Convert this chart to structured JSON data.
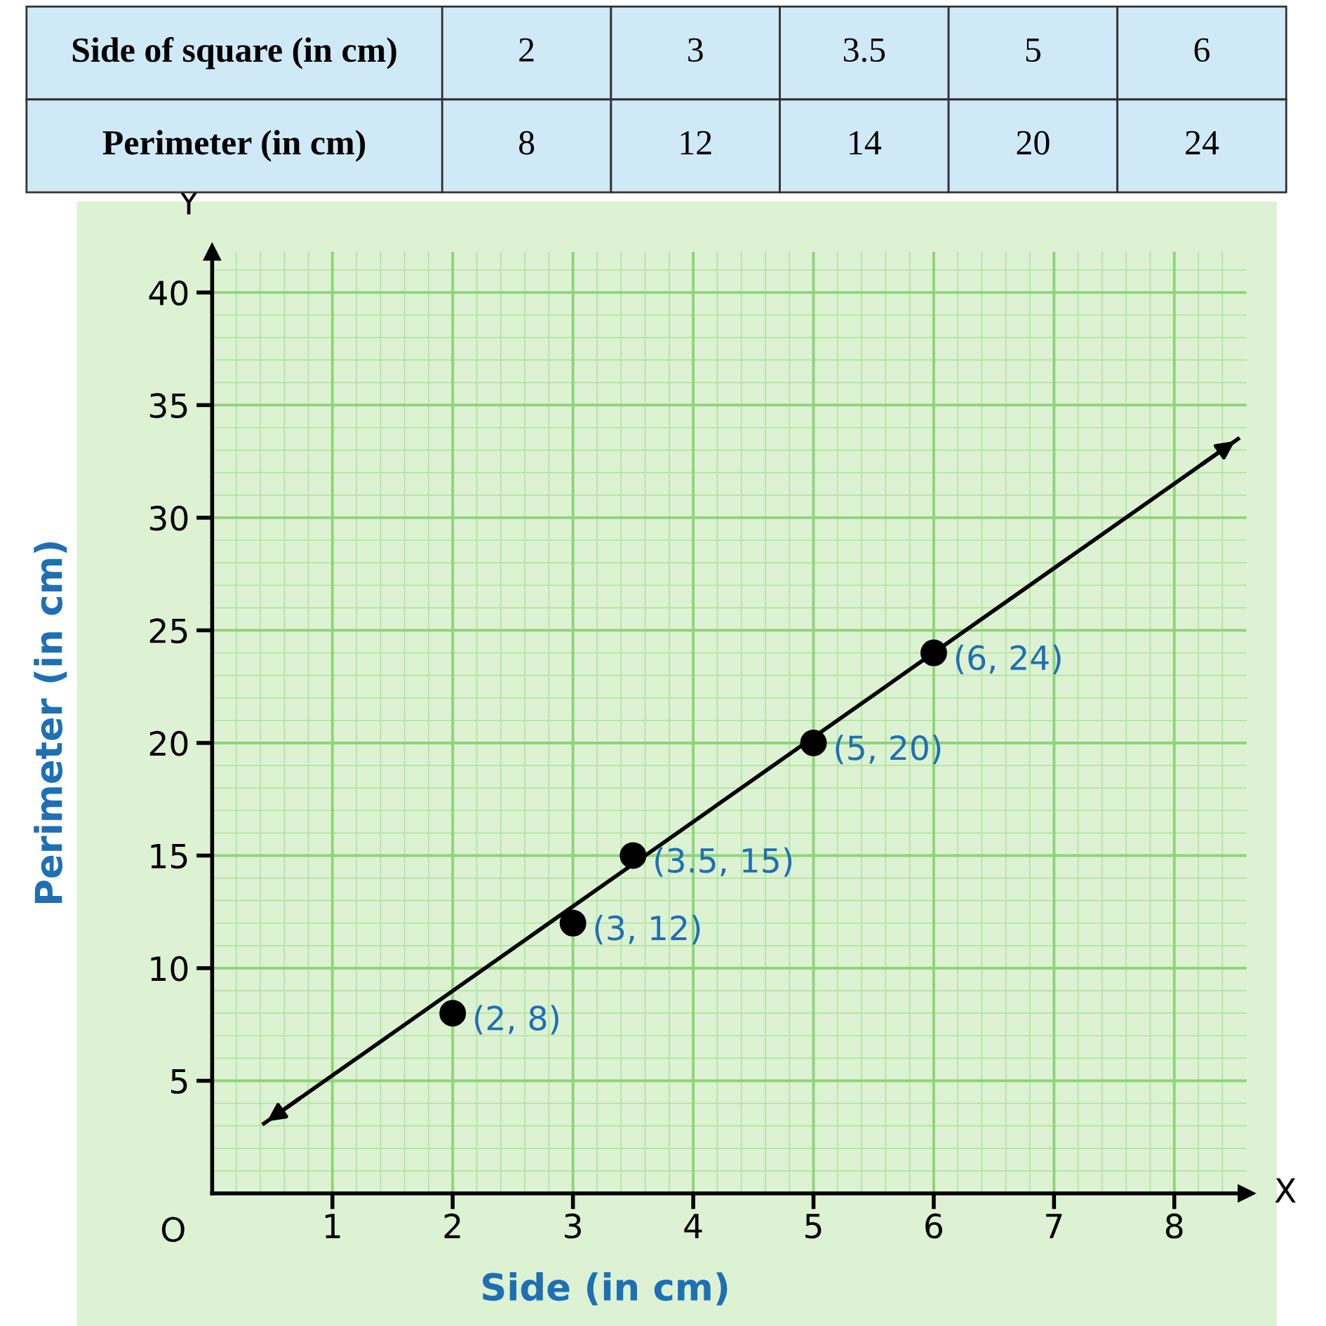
{
  "chart_data": {
    "type": "scatter",
    "xlabel": "Side (in cm)",
    "ylabel": "Perimeter (in cm)",
    "series": [
      {
        "color": "#000000",
        "x": [
          2,
          3,
          3.5,
          5,
          6
        ],
        "values": [
          8,
          12,
          15,
          20,
          24
        ],
        "value_labels": [
          "(2, 8)",
          "(3, 12)",
          "(3.5, 15)",
          "(5, 20)",
          "(6, 24)"
        ]
      },
      {
        "type": "line",
        "marker": "none",
        "color": "#000000",
        "x": [
          0.43,
          8.53
        ],
        "values": [
          3.1,
          33.5
        ]
      }
    ],
    "xlim": [
      0,
      8.6
    ],
    "ylim": [
      0,
      41.8
    ],
    "xticks": [
      1,
      2,
      3,
      4,
      5,
      6,
      7,
      8
    ],
    "yticks": [
      5,
      10,
      15,
      20,
      25,
      30,
      35,
      40
    ],
    "grid": true,
    "marker": "circle",
    "annotations": [
      "Side of square (in cm)",
      "2",
      "3",
      "3.5",
      "5",
      "6",
      "Perimeter (in cm)",
      "8",
      "12",
      "14",
      "20",
      "24",
      "O",
      "X",
      "Y"
    ]
  }
}
